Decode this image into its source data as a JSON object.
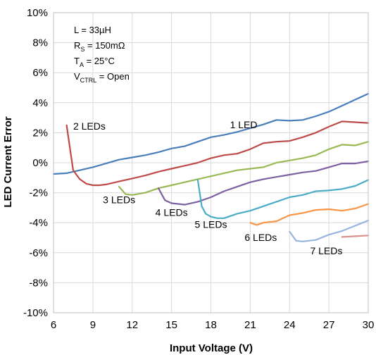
{
  "chart_data": {
    "type": "line",
    "xlabel": "Input Voltage (V)",
    "ylabel": "LED Current Error",
    "xlim": [
      6,
      30
    ],
    "ylim": [
      -10,
      10
    ],
    "x_ticks": [
      "6",
      "9",
      "12",
      "15",
      "18",
      "21",
      "24",
      "27",
      "30"
    ],
    "y_ticks": [
      "10%",
      "8%",
      "6%",
      "4%",
      "2%",
      "0%",
      "-2%",
      "-4%",
      "-6%",
      "-8%",
      "-10%"
    ],
    "grid": true,
    "annotations": {
      "inductor": "L = 33µH",
      "rs_main": "R",
      "rs_sub": "S",
      "rs_value": " = 150mΩ",
      "ta_main": "T",
      "ta_sub": "A",
      "ta_value": " = 25°C",
      "vctrl_main": "V",
      "vctrl_sub": "CTRL",
      "vctrl_value": " = Open"
    },
    "series": [
      {
        "name": "1 LED",
        "color": "#4a7ebb",
        "x": [
          6,
          7,
          8,
          9,
          10,
          11,
          12,
          13,
          14,
          15,
          16,
          17,
          18,
          19,
          20,
          21,
          22,
          23,
          24,
          25,
          26,
          27,
          28,
          29,
          30
        ],
        "y": [
          -0.75,
          -0.7,
          -0.5,
          -0.3,
          -0.05,
          0.2,
          0.35,
          0.5,
          0.7,
          0.95,
          1.1,
          1.4,
          1.7,
          1.85,
          2.05,
          2.3,
          2.55,
          2.85,
          2.8,
          2.85,
          3.1,
          3.4,
          3.8,
          4.2,
          4.6
        ]
      },
      {
        "name": "2 LEDs",
        "color": "#be4b48",
        "x": [
          7,
          7.5,
          8,
          8.5,
          9,
          9.5,
          10,
          11,
          12,
          13,
          14,
          15,
          16,
          17,
          18,
          19,
          20,
          21,
          22,
          23,
          24,
          25,
          26,
          27,
          28,
          29,
          30
        ],
        "y": [
          2.5,
          -0.5,
          -1.1,
          -1.4,
          -1.5,
          -1.5,
          -1.45,
          -1.25,
          -1.05,
          -0.85,
          -0.6,
          -0.4,
          -0.2,
          0.0,
          0.3,
          0.5,
          0.6,
          0.9,
          1.3,
          1.4,
          1.45,
          1.7,
          2.0,
          2.4,
          2.75,
          2.7,
          2.65
        ]
      },
      {
        "name": "3 LEDs",
        "color": "#98b954",
        "x": [
          11,
          11.5,
          12,
          13,
          14,
          15,
          16,
          17,
          18,
          19,
          20,
          21,
          22,
          23,
          24,
          25,
          26,
          27,
          28,
          29,
          30
        ],
        "y": [
          -1.6,
          -2.1,
          -2.15,
          -2.0,
          -1.7,
          -1.5,
          -1.3,
          -1.1,
          -0.9,
          -0.7,
          -0.5,
          -0.4,
          -0.3,
          0.0,
          0.15,
          0.3,
          0.5,
          0.9,
          1.2,
          1.15,
          1.4
        ]
      },
      {
        "name": "4 LEDs",
        "color": "#7d60a0",
        "x": [
          14,
          14.5,
          15,
          16,
          17,
          18,
          19,
          20,
          21,
          22,
          23,
          24,
          25,
          26,
          27,
          28,
          29,
          30
        ],
        "y": [
          -1.7,
          -2.5,
          -2.7,
          -2.8,
          -2.6,
          -2.3,
          -1.9,
          -1.6,
          -1.3,
          -1.1,
          -0.95,
          -0.8,
          -0.65,
          -0.55,
          -0.3,
          -0.05,
          -0.05,
          0.1
        ]
      },
      {
        "name": "5 LEDs",
        "color": "#4aacc6",
        "x": [
          17,
          17.3,
          17.6,
          18,
          18.5,
          19,
          20,
          21,
          22,
          23,
          24,
          25,
          26,
          27,
          28,
          29,
          30
        ],
        "y": [
          -1.15,
          -2.9,
          -3.4,
          -3.6,
          -3.7,
          -3.7,
          -3.4,
          -3.2,
          -2.9,
          -2.6,
          -2.3,
          -2.15,
          -1.9,
          -1.85,
          -1.75,
          -1.55,
          -1.15
        ]
      },
      {
        "name": "6 LEDs",
        "color": "#f79646",
        "x": [
          21,
          21.5,
          22,
          23,
          24,
          25,
          26,
          27,
          28,
          29,
          30
        ],
        "y": [
          -4.0,
          -4.15,
          -4.0,
          -3.9,
          -3.5,
          -3.35,
          -3.15,
          -3.1,
          -3.2,
          -3.05,
          -2.75
        ]
      },
      {
        "name": "7 LEDs",
        "color": "#98b4e0",
        "x": [
          24,
          24.5,
          25,
          26,
          27,
          28,
          29,
          30
        ],
        "y": [
          -4.6,
          -5.2,
          -5.25,
          -5.15,
          -4.8,
          -4.55,
          -4.2,
          -3.85
        ]
      },
      {
        "name": "",
        "color": "#d98f8b",
        "x": [
          28,
          29,
          30
        ],
        "y": [
          -4.95,
          -4.9,
          -4.85
        ]
      }
    ]
  }
}
